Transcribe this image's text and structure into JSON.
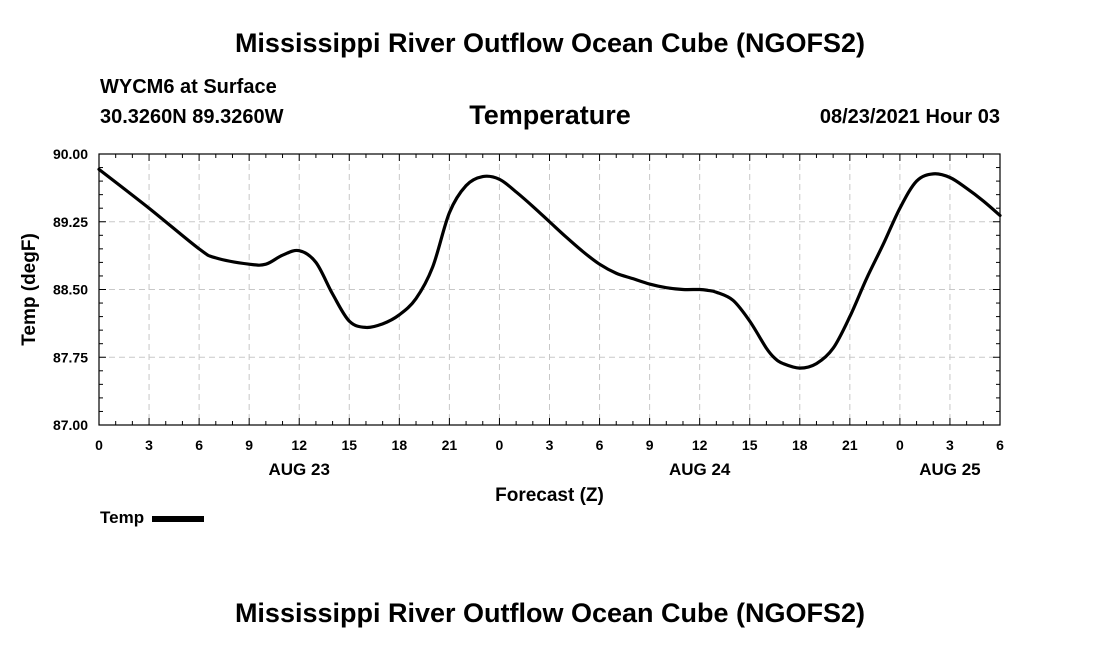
{
  "header": {
    "title": "Mississippi River Outflow Ocean Cube (NGOFS2)",
    "station": "WYCM6 at Surface",
    "coords": "30.3260N  89.3260W",
    "datetime": "08/23/2021 Hour 03",
    "footer_title": "Mississippi River Outflow Ocean Cube (NGOFS2)"
  },
  "chart_data": {
    "type": "line",
    "title": "Temperature",
    "xlabel": "Forecast (Z)",
    "ylabel": "Temp (degF)",
    "ylim": [
      87.0,
      90.0
    ],
    "xlim": [
      0,
      54
    ],
    "grid": true,
    "yticks": [
      "87.00",
      "87.75",
      "88.50",
      "89.25",
      "90.00"
    ],
    "ytick_values": [
      87.0,
      87.75,
      88.5,
      89.25,
      90.0
    ],
    "xtick_labels": [
      "0",
      "3",
      "6",
      "9",
      "12",
      "15",
      "18",
      "21",
      "0",
      "3",
      "6",
      "9",
      "12",
      "15",
      "18",
      "21",
      "0",
      "3",
      "6"
    ],
    "date_labels": [
      {
        "label": "AUG 23",
        "hour": 12
      },
      {
        "label": "AUG 24",
        "hour": 36
      },
      {
        "label": "AUG 25",
        "hour": 51
      }
    ],
    "legend": {
      "label": "Temp",
      "placement": "bottom-left"
    },
    "series": [
      {
        "name": "Temp",
        "x": [
          0,
          3,
          6,
          7,
          9,
          10,
          11,
          12,
          13,
          14,
          15,
          16,
          17,
          18,
          19,
          20,
          21,
          22,
          23,
          24,
          25,
          26,
          27,
          28,
          29,
          30,
          31,
          32,
          33,
          34,
          35,
          36,
          36.5,
          37,
          38,
          39,
          40,
          40.5,
          41,
          42,
          43,
          44,
          45,
          46,
          47,
          48,
          49,
          50,
          51,
          52,
          53,
          54
        ],
        "y": [
          89.83,
          89.4,
          88.95,
          88.85,
          88.78,
          88.78,
          88.88,
          88.93,
          88.8,
          88.45,
          88.15,
          88.08,
          88.12,
          88.22,
          88.4,
          88.75,
          89.35,
          89.65,
          89.75,
          89.72,
          89.58,
          89.42,
          89.25,
          89.08,
          88.92,
          88.78,
          88.68,
          88.62,
          88.56,
          88.52,
          88.5,
          88.5,
          88.49,
          88.47,
          88.38,
          88.15,
          87.85,
          87.74,
          87.68,
          87.63,
          87.68,
          87.85,
          88.2,
          88.62,
          89.0,
          89.4,
          89.7,
          89.78,
          89.74,
          89.62,
          89.48,
          89.32
        ]
      }
    ]
  }
}
